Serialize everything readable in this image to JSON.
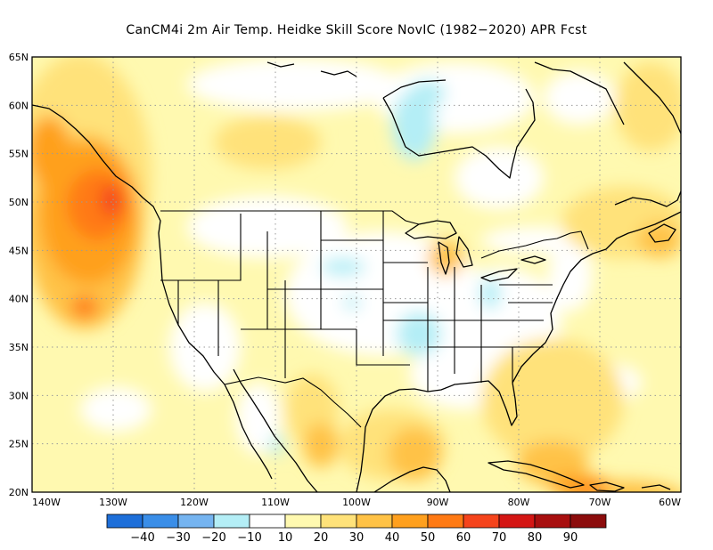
{
  "title": "CanCM4i  2m Air Temp. Heidke Skill Score NovIC (1982−2020) APR Fcst",
  "map": {
    "lat_range": [
      20,
      65
    ],
    "lon_range": [
      -140,
      -60
    ],
    "lat_labels": [
      "65N",
      "60N",
      "55N",
      "50N",
      "45N",
      "40N",
      "35N",
      "30N",
      "25N",
      "20N"
    ],
    "lon_labels": [
      "140W",
      "130W",
      "120W",
      "110W",
      "100W",
      "90W",
      "80W",
      "70W",
      "60W"
    ],
    "grid": "dotted"
  },
  "colorbar": {
    "labels": [
      "−40",
      "−30",
      "−20",
      "−10",
      "10",
      "20",
      "30",
      "40",
      "50",
      "60",
      "70",
      "80",
      "90"
    ],
    "colors": [
      "#1e6fd9",
      "#3a8ee8",
      "#75b4f0",
      "#b4eef6",
      "#ffffff",
      "#fff9b0",
      "#ffe27a",
      "#ffc246",
      "#ffa01e",
      "#ff7a14",
      "#f5441c",
      "#d41614",
      "#a80f0f",
      "#8c0c0c"
    ]
  }
}
